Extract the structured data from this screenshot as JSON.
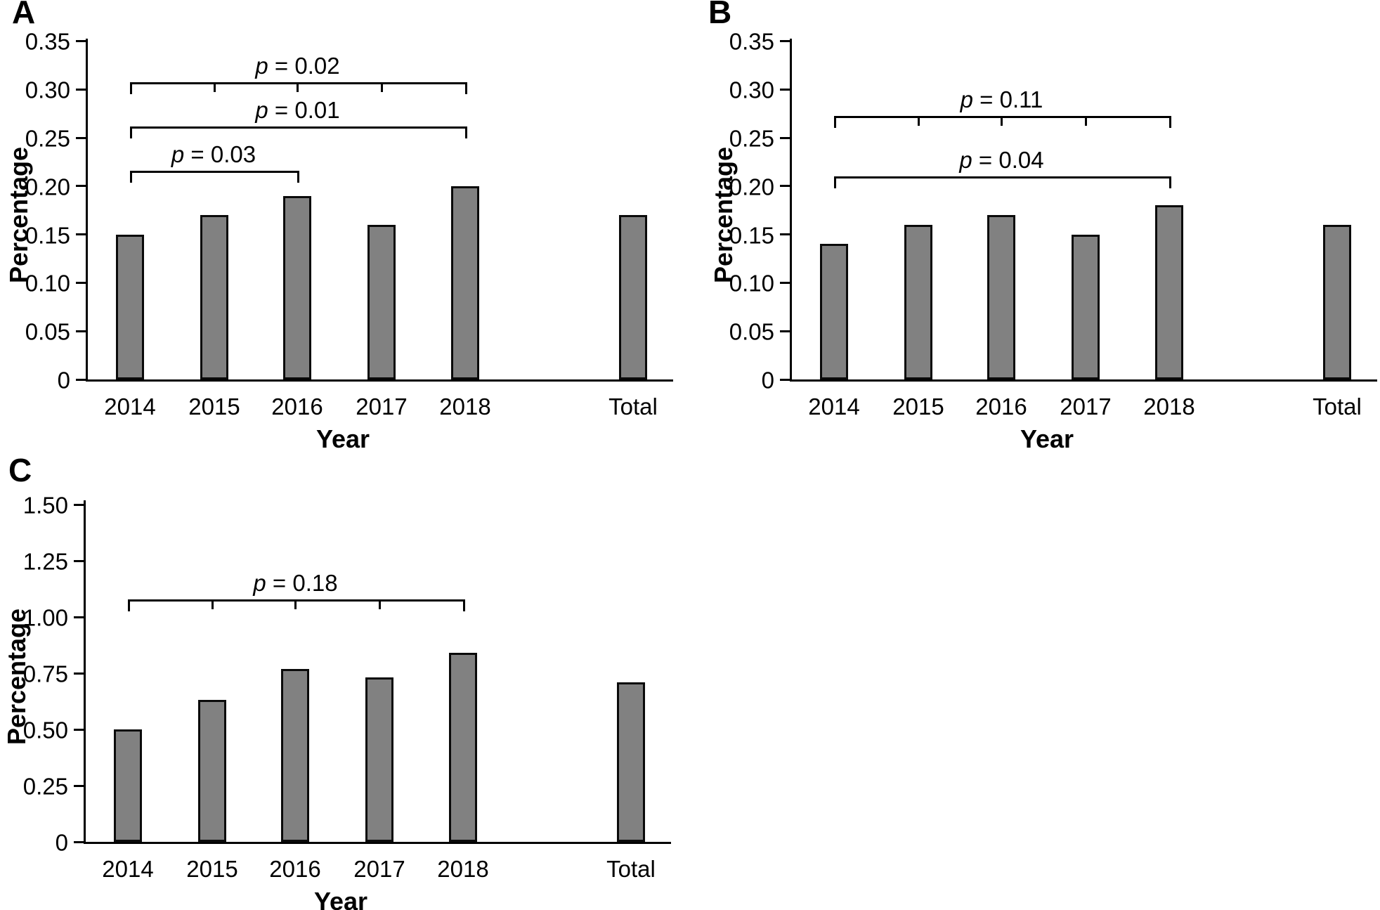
{
  "chart_data": [
    {
      "type": "bar",
      "panel_label": "A",
      "xlabel": "Year",
      "ylabel": "Percentage",
      "categories": [
        "2014",
        "2015",
        "2016",
        "2017",
        "2018",
        "Total"
      ],
      "values": [
        0.15,
        0.17,
        0.19,
        0.16,
        0.2,
        0.17
      ],
      "ylim": [
        0,
        0.35
      ],
      "y_tick_labels": [
        "0",
        "0.05",
        "0.10",
        "0.15",
        "0.20",
        "0.25",
        "0.30",
        "0.35"
      ],
      "grid": false,
      "legend": null,
      "bar_color": "#818181",
      "annotations": [
        {
          "label": "p = 0.02",
          "label_symbol": "p",
          "label_rest": " = 0.02",
          "from_category": "2014",
          "to_category": "2018",
          "intermediate_ticks": true
        },
        {
          "label": "p = 0.01",
          "label_symbol": "p",
          "label_rest": " = 0.01",
          "from_category": "2014",
          "to_category": "2018",
          "intermediate_ticks": false
        },
        {
          "label": "p = 0.03",
          "label_symbol": "p",
          "label_rest": " = 0.03",
          "from_category": "2014",
          "to_category": "2016",
          "intermediate_ticks": false
        }
      ]
    },
    {
      "type": "bar",
      "panel_label": "B",
      "xlabel": "Year",
      "ylabel": "Percentage",
      "categories": [
        "2014",
        "2015",
        "2016",
        "2017",
        "2018",
        "Total"
      ],
      "values": [
        0.14,
        0.16,
        0.17,
        0.15,
        0.18,
        0.16
      ],
      "ylim": [
        0,
        0.35
      ],
      "y_tick_labels": [
        "0",
        "0.05",
        "0.10",
        "0.15",
        "0.20",
        "0.25",
        "0.30",
        "0.35"
      ],
      "grid": false,
      "legend": null,
      "bar_color": "#818181",
      "annotations": [
        {
          "label": "p = 0.11",
          "label_symbol": "p",
          "label_rest": " = 0.11",
          "from_category": "2014",
          "to_category": "2018",
          "intermediate_ticks": true
        },
        {
          "label": "p = 0.04",
          "label_symbol": "p",
          "label_rest": " = 0.04",
          "from_category": "2014",
          "to_category": "2018",
          "intermediate_ticks": false
        }
      ]
    },
    {
      "type": "bar",
      "panel_label": "C",
      "xlabel": "Year",
      "ylabel": "Percentage",
      "categories": [
        "2014",
        "2015",
        "2016",
        "2017",
        "2018",
        "Total"
      ],
      "values": [
        0.5,
        0.63,
        0.77,
        0.73,
        0.84,
        0.71
      ],
      "ylim": [
        0,
        1.5
      ],
      "y_tick_labels": [
        "0",
        "0.25",
        "0.50",
        "0.75",
        "1.00",
        "1.25",
        "1.50"
      ],
      "grid": false,
      "legend": null,
      "bar_color": "#818181",
      "annotations": [
        {
          "label": "p = 0.18",
          "label_symbol": "p",
          "label_rest": " = 0.18",
          "from_category": "2014",
          "to_category": "2018",
          "intermediate_ticks": true
        }
      ]
    }
  ]
}
